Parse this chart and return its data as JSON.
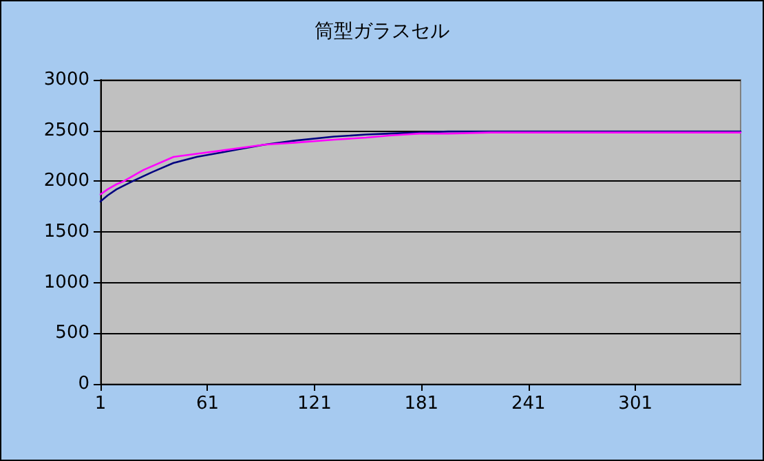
{
  "chart_data": {
    "type": "line",
    "title": "筒型ガラスセル",
    "xlim": [
      1,
      360
    ],
    "xticks": [
      1,
      61,
      121,
      181,
      241,
      301
    ],
    "ylim": [
      0,
      3000
    ],
    "yticks": [
      0,
      500,
      1000,
      1500,
      2000,
      2500,
      3000
    ],
    "grid": "y",
    "marker": "none",
    "line_style": "solid",
    "series": [
      {
        "color": "#000080",
        "x": [
          1,
          5,
          10,
          19,
          30,
          42,
          55,
          68,
          80,
          93,
          110,
          132,
          150,
          163,
          180,
          196,
          220,
          250,
          300,
          360
        ],
        "values": [
          1800,
          1860,
          1920,
          2000,
          2090,
          2180,
          2240,
          2280,
          2320,
          2360,
          2400,
          2440,
          2460,
          2470,
          2480,
          2490,
          2490,
          2490,
          2490,
          2490
        ]
      },
      {
        "color": "#ff00ff",
        "x": [
          1,
          5,
          10,
          14,
          25,
          42,
          55,
          68,
          80,
          93,
          110,
          132,
          150,
          163,
          180,
          196,
          220,
          250,
          300,
          360
        ],
        "values": [
          1870,
          1920,
          1970,
          2000,
          2110,
          2240,
          2270,
          2300,
          2330,
          2360,
          2380,
          2410,
          2430,
          2450,
          2470,
          2470,
          2480,
          2480,
          2480,
          2480
        ]
      }
    ]
  }
}
